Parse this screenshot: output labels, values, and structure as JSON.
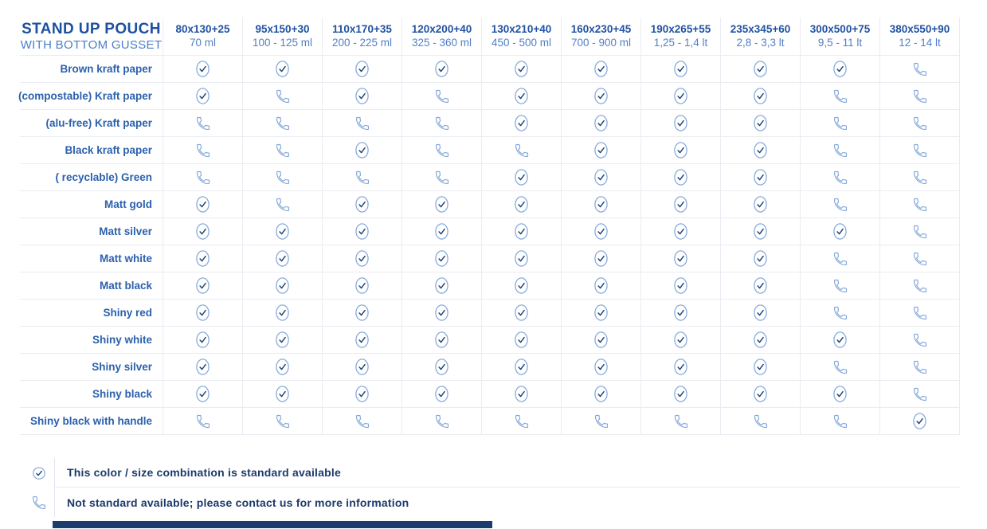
{
  "chart_data": {
    "type": "table",
    "title": "STAND UP POUCH",
    "subtitle": "WITH BOTTOM GUSSET",
    "columns": [
      {
        "size": "80x130+25",
        "volume": "70 ml"
      },
      {
        "size": "95x150+30",
        "volume": "100 - 125 ml"
      },
      {
        "size": "110x170+35",
        "volume": "200 - 225 ml"
      },
      {
        "size": "120x200+40",
        "volume": "325 - 360 ml"
      },
      {
        "size": "130x210+40",
        "volume": "450 - 500 ml"
      },
      {
        "size": "160x230+45",
        "volume": "700 - 900 ml"
      },
      {
        "size": "190x265+55",
        "volume": "1,25 - 1,4 lt"
      },
      {
        "size": "235x345+60",
        "volume": "2,8 - 3,3 lt"
      },
      {
        "size": "300x500+75",
        "volume": "9,5 - 11 lt"
      },
      {
        "size": "380x550+90",
        "volume": "12 - 14 lt"
      }
    ],
    "rows": [
      {
        "label": "Brown kraft paper",
        "cells": [
          "check",
          "check",
          "check",
          "check",
          "check",
          "check",
          "check",
          "check",
          "check",
          "phone"
        ]
      },
      {
        "label": "(compostable) Kraft paper",
        "cells": [
          "check",
          "phone",
          "check",
          "phone",
          "check",
          "check",
          "check",
          "check",
          "phone",
          "phone"
        ]
      },
      {
        "label": "(alu-free) Kraft paper",
        "cells": [
          "phone",
          "phone",
          "phone",
          "phone",
          "check",
          "check",
          "check",
          "check",
          "phone",
          "phone"
        ]
      },
      {
        "label": "Black kraft paper",
        "cells": [
          "phone",
          "phone",
          "check",
          "phone",
          "phone",
          "check",
          "check",
          "check",
          "phone",
          "phone"
        ]
      },
      {
        "label": "( recyclable) Green",
        "cells": [
          "phone",
          "phone",
          "phone",
          "phone",
          "check",
          "check",
          "check",
          "check",
          "phone",
          "phone"
        ]
      },
      {
        "label": "Matt gold",
        "cells": [
          "check",
          "phone",
          "check",
          "check",
          "check",
          "check",
          "check",
          "check",
          "phone",
          "phone"
        ]
      },
      {
        "label": "Matt silver",
        "cells": [
          "check",
          "check",
          "check",
          "check",
          "check",
          "check",
          "check",
          "check",
          "check",
          "phone"
        ]
      },
      {
        "label": "Matt white",
        "cells": [
          "check",
          "check",
          "check",
          "check",
          "check",
          "check",
          "check",
          "check",
          "phone",
          "phone"
        ]
      },
      {
        "label": "Matt black",
        "cells": [
          "check",
          "check",
          "check",
          "check",
          "check",
          "check",
          "check",
          "check",
          "phone",
          "phone"
        ]
      },
      {
        "label": "Shiny red",
        "cells": [
          "check",
          "check",
          "check",
          "check",
          "check",
          "check",
          "check",
          "check",
          "phone",
          "phone"
        ]
      },
      {
        "label": "Shiny white",
        "cells": [
          "check",
          "check",
          "check",
          "check",
          "check",
          "check",
          "check",
          "check",
          "check",
          "phone"
        ]
      },
      {
        "label": "Shiny silver",
        "cells": [
          "check",
          "check",
          "check",
          "check",
          "check",
          "check",
          "check",
          "check",
          "phone",
          "phone"
        ]
      },
      {
        "label": "Shiny black",
        "cells": [
          "check",
          "check",
          "check",
          "check",
          "check",
          "check",
          "check",
          "check",
          "check",
          "phone"
        ]
      },
      {
        "label": "Shiny black with handle",
        "cells": [
          "phone",
          "phone",
          "phone",
          "phone",
          "phone",
          "phone",
          "phone",
          "phone",
          "phone",
          "check"
        ]
      }
    ],
    "legend": [
      {
        "icon": "check-icon",
        "text": "This color / size combination is standard available"
      },
      {
        "icon": "phone-icon",
        "text": "Not standard available; please contact us for more information"
      }
    ],
    "cell_meaning": {
      "check": "standard available",
      "phone": "not standard available, contact us"
    }
  },
  "colors": {
    "title": "#1d50a0",
    "subtitle": "#4c7ec7",
    "header_size": "#2152a2",
    "header_volume": "#527fc5",
    "row_label": "#2b61ad",
    "legend_text": "#1c3a6b",
    "icon_outline": "#84a8da",
    "check_mark": "#1e4178",
    "grid_line": "#ebecf2",
    "bottom_bar": "#1d3c6e"
  }
}
